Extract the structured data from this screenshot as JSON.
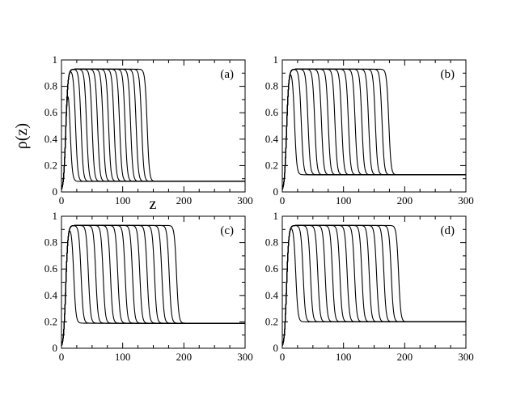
{
  "figure": {
    "ylabel": "ρ(z)",
    "xlabel": "z"
  },
  "chart_data": [
    {
      "type": "line",
      "panel_label": "(a)",
      "xlim": [
        0,
        300
      ],
      "ylim": [
        0,
        1
      ],
      "xticks": [
        "0",
        "100",
        "200",
        "300"
      ],
      "yticks": [
        "0",
        "0.2",
        "0.4",
        "0.6",
        "0.8",
        "1"
      ],
      "high_density": 0.93,
      "low_density": 0.08,
      "front_positions": [
        14,
        23,
        32,
        41,
        50,
        59,
        68,
        77,
        86,
        95,
        104,
        113,
        122,
        131,
        140
      ],
      "grid": false,
      "legend": "none"
    },
    {
      "type": "line",
      "panel_label": "(b)",
      "xlim": [
        0,
        300
      ],
      "ylim": [
        0,
        1
      ],
      "xticks": [
        "0",
        "100",
        "200",
        "300"
      ],
      "yticks": [
        "0",
        "0.2",
        "0.4",
        "0.6",
        "0.8",
        "1"
      ],
      "high_density": 0.93,
      "low_density": 0.13,
      "front_positions": [
        20,
        31,
        42,
        53,
        64,
        75,
        86,
        97,
        108,
        119,
        130,
        141,
        152,
        163,
        174
      ],
      "grid": false,
      "legend": "none"
    },
    {
      "type": "line",
      "panel_label": "(c)",
      "xlim": [
        0,
        300
      ],
      "ylim": [
        0,
        1
      ],
      "xticks": [
        "0",
        "100",
        "200",
        "300"
      ],
      "yticks": [
        "0",
        "0.2",
        "0.4",
        "0.6",
        "0.8",
        "1"
      ],
      "high_density": 0.93,
      "low_density": 0.19,
      "front_positions": [
        20,
        32,
        44,
        56,
        68,
        80,
        92,
        104,
        116,
        128,
        140,
        152,
        164,
        176,
        188
      ],
      "grid": false,
      "legend": "none"
    },
    {
      "type": "line",
      "panel_label": "(d)",
      "xlim": [
        0,
        300
      ],
      "ylim": [
        0,
        1
      ],
      "xticks": [
        "0",
        "100",
        "200",
        "300"
      ],
      "yticks": [
        "0",
        "0.2",
        "0.4",
        "0.6",
        "0.8",
        "1"
      ],
      "high_density": 0.93,
      "low_density": 0.2,
      "front_positions": [
        22,
        34,
        46,
        58,
        70,
        82,
        94,
        106,
        118,
        130,
        142,
        154,
        166,
        178,
        190
      ],
      "grid": false,
      "legend": "none"
    }
  ]
}
